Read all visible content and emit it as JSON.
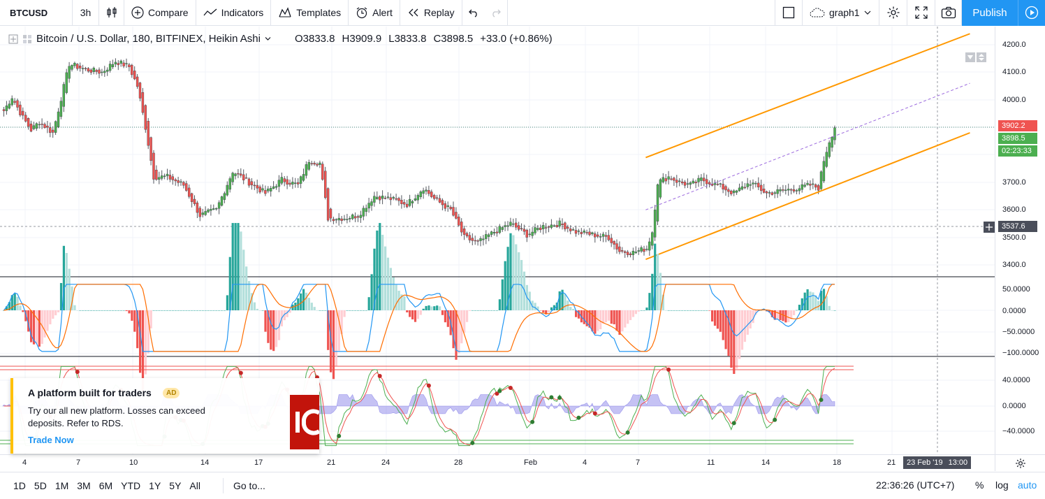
{
  "toolbar": {
    "symbol": "BTCUSD",
    "interval": "3h",
    "compare": "Compare",
    "indicators": "Indicators",
    "templates": "Templates",
    "alert": "Alert",
    "replay": "Replay",
    "layout_name": "graph1",
    "publish": "Publish",
    "icons": [
      "candles-icon",
      "plus-circle-icon",
      "indicators-icon",
      "templates-icon",
      "alarm-clock-icon",
      "replay-icon",
      "undo-icon",
      "redo-icon",
      "layout-square-icon",
      "cloud-icon",
      "gear-icon",
      "fullscreen-icon",
      "camera-icon",
      "play-icon"
    ]
  },
  "legend": {
    "symbol_desc": "Bitcoin / U.S. Dollar, 180, BITFINEX, Heikin Ashi",
    "open": "O3833.8",
    "high": "H3909.9",
    "low": "L3833.8",
    "close": "C3898.5",
    "change": "+33.0 (+0.86%)"
  },
  "price_axis": {
    "labels": [
      "4200.0",
      "4100.0",
      "4000.0",
      "3700.0",
      "3600.0",
      "3500.0",
      "3400.0"
    ],
    "tag_high": "3902.2",
    "tag_last": "3898.5",
    "tag_countdown": "02:23:33",
    "tag_cursor": "3537.6"
  },
  "macd_axis": {
    "labels": [
      "50.0000",
      "0.0000",
      "−50.0000",
      "−100.0000"
    ]
  },
  "osc_axis": {
    "labels": [
      "40.0000",
      "0.0000",
      "−40.0000"
    ]
  },
  "time_axis": {
    "labels": [
      "4",
      "7",
      "10",
      "14",
      "17",
      "21",
      "24",
      "28",
      "Feb",
      "4",
      "7",
      "11",
      "14",
      "18",
      "21"
    ],
    "cursor_date": "23 Feb '19",
    "cursor_time": "13:00"
  },
  "bottom": {
    "ranges": [
      "1D",
      "5D",
      "1M",
      "3M",
      "6M",
      "YTD",
      "1Y",
      "5Y",
      "All"
    ],
    "goto": "Go to...",
    "clock": "22:36:26 (UTC+7)",
    "percent": "%",
    "log": "log",
    "auto": "auto"
  },
  "ad": {
    "title": "A platform built for traders",
    "badge": "AD",
    "text": "Try our all new platform. Losses can exceed deposits. Refer to RDS.",
    "link": "Trade Now"
  },
  "chart_data": {
    "type": "candlestick",
    "style": "Heikin Ashi",
    "ylim": [
      3380,
      4240
    ],
    "close_path": [
      [
        0,
        3960
      ],
      [
        3,
        4010
      ],
      [
        7,
        3935
      ],
      [
        10,
        3890
      ],
      [
        13,
        3920
      ],
      [
        18,
        3880
      ],
      [
        24,
        4130
      ],
      [
        30,
        4110
      ],
      [
        36,
        4100
      ],
      [
        41,
        4140
      ],
      [
        46,
        4120
      ],
      [
        49,
        4050
      ],
      [
        52,
        3900
      ],
      [
        55,
        3720
      ],
      [
        60,
        3720
      ],
      [
        66,
        3690
      ],
      [
        72,
        3580
      ],
      [
        78,
        3600
      ],
      [
        84,
        3740
      ],
      [
        90,
        3700
      ],
      [
        96,
        3660
      ],
      [
        102,
        3710
      ],
      [
        108,
        3690
      ],
      [
        112,
        3780
      ],
      [
        116,
        3770
      ],
      [
        119,
        3570
      ],
      [
        125,
        3570
      ],
      [
        130,
        3580
      ],
      [
        136,
        3650
      ],
      [
        142,
        3640
      ],
      [
        148,
        3620
      ],
      [
        154,
        3680
      ],
      [
        158,
        3640
      ],
      [
        164,
        3600
      ],
      [
        169,
        3500
      ],
      [
        174,
        3480
      ],
      [
        180,
        3520
      ],
      [
        186,
        3550
      ],
      [
        192,
        3510
      ],
      [
        198,
        3540
      ],
      [
        204,
        3550
      ],
      [
        210,
        3520
      ],
      [
        216,
        3510
      ],
      [
        222,
        3500
      ],
      [
        226,
        3450
      ],
      [
        231,
        3445
      ],
      [
        236,
        3460
      ],
      [
        238,
        3520
      ],
      [
        240,
        3700
      ],
      [
        244,
        3720
      ],
      [
        248,
        3700
      ],
      [
        252,
        3690
      ],
      [
        256,
        3710
      ],
      [
        262,
        3690
      ],
      [
        268,
        3660
      ],
      [
        274,
        3700
      ],
      [
        280,
        3660
      ],
      [
        286,
        3670
      ],
      [
        292,
        3680
      ],
      [
        296,
        3690
      ],
      [
        299,
        3680
      ],
      [
        301,
        3780
      ],
      [
        303,
        3850
      ],
      [
        305,
        3898.5
      ]
    ],
    "channel_upper": [
      [
        236,
        3790
      ],
      [
        355,
        4240
      ]
    ],
    "channel_lower": [
      [
        236,
        3420
      ],
      [
        355,
        3880
      ]
    ],
    "channel_mid": [
      [
        236,
        3600
      ],
      [
        355,
        4060
      ]
    ],
    "cursor_price": 3537.6,
    "high_line": 3902.2
  }
}
